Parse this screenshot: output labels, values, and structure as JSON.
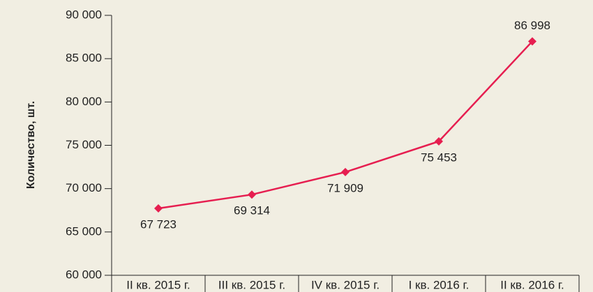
{
  "chart_data": {
    "type": "line",
    "y_label": "Количество, шт.",
    "categories": [
      "II кв. 2015 г.",
      "III кв. 2015 г.",
      "IV кв. 2015 г.",
      "I кв. 2016 г.",
      "II кв. 2016 г."
    ],
    "series": [
      {
        "name": "Количество",
        "color": "#e61e50",
        "values": [
          67723,
          69314,
          71909,
          75453,
          86998
        ],
        "value_labels": [
          "67 723",
          "69 314",
          "71 909",
          "75 453",
          "86 998"
        ]
      }
    ],
    "ylim": [
      60000,
      90000
    ],
    "yticks": [
      {
        "value": 60000,
        "label": "60 000"
      },
      {
        "value": 65000,
        "label": "65 000"
      },
      {
        "value": 70000,
        "label": "70 000"
      },
      {
        "value": 75000,
        "label": "75 000"
      },
      {
        "value": 80000,
        "label": "80 000"
      },
      {
        "value": 85000,
        "label": "85 000"
      },
      {
        "value": 90000,
        "label": "90 000"
      }
    ],
    "grid": false
  }
}
